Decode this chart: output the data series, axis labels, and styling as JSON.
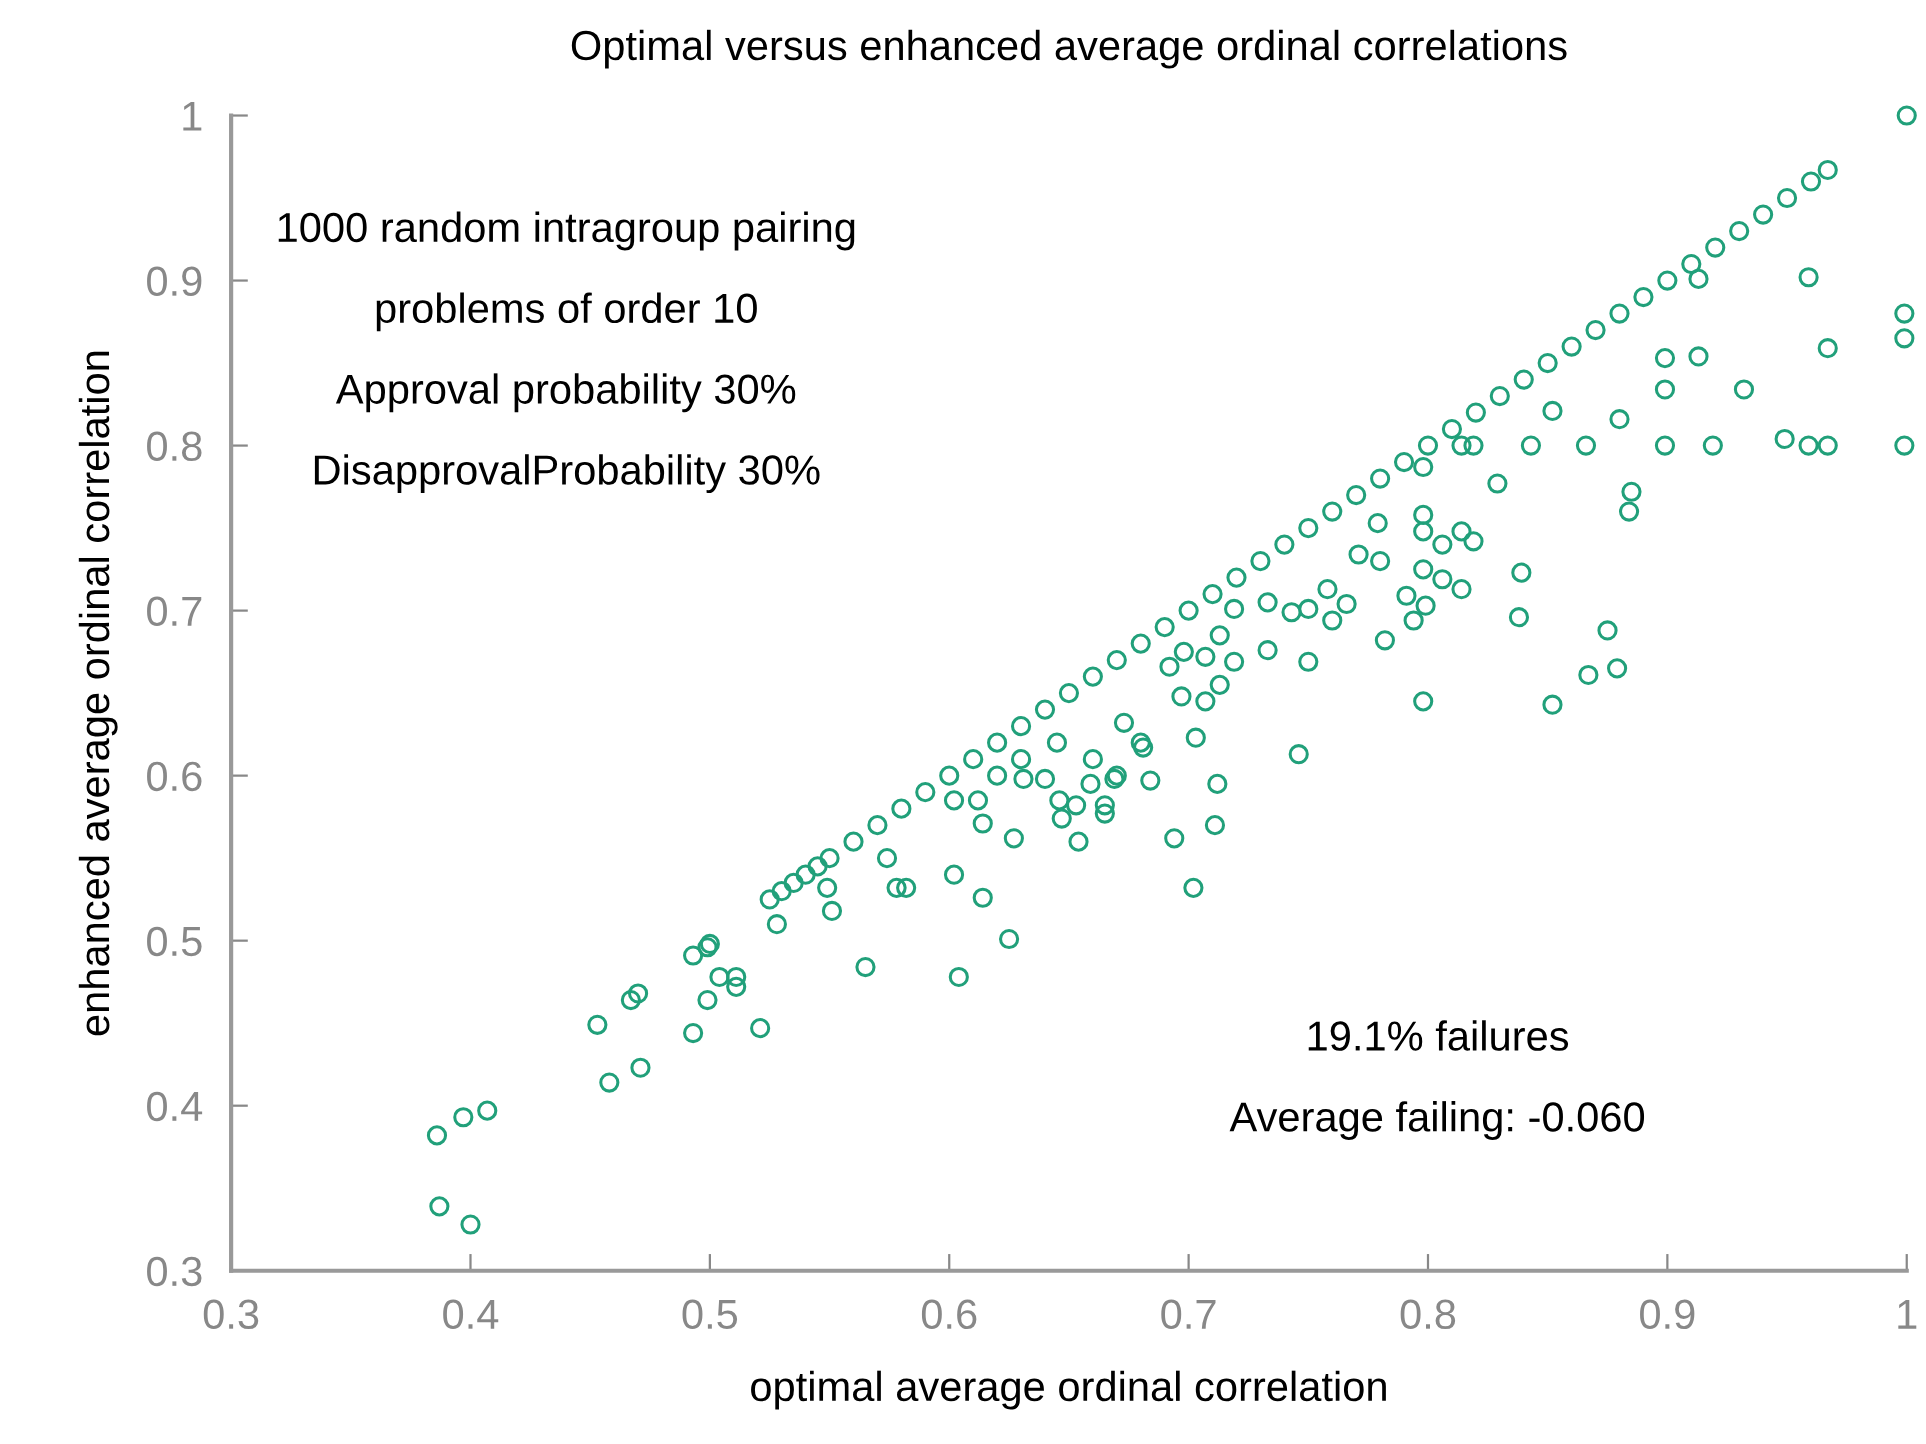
{
  "chart_data": {
    "type": "scatter",
    "title": "Optimal versus enhanced average ordinal correlations",
    "xlabel": "optimal average ordinal correlation",
    "ylabel": "enhanced average ordinal correlation",
    "annotations": [
      "1000 random intragroup pairing",
      "problems of order 10",
      "Approval probability 30%",
      "DisapprovalProbability 30%",
      "19.1% failures",
      "Average failing: -0.060"
    ],
    "xlim": [
      0.3,
      1
    ],
    "ylim": [
      0.3,
      1
    ],
    "xticks": [
      0.3,
      0.4,
      0.5,
      0.6,
      0.7,
      0.8,
      0.9,
      1
    ],
    "yticks": [
      0.3,
      0.4,
      0.5,
      0.6,
      0.7,
      0.8,
      0.9,
      1
    ],
    "grid": false,
    "legend": false,
    "marker": "circle",
    "series": [
      {
        "color": "#21a07a",
        "x": [
          0.525,
          0.53,
          0.535,
          0.54,
          0.545,
          0.55,
          0.56,
          0.57,
          0.58,
          0.59,
          0.6,
          0.61,
          0.62,
          0.63,
          0.64,
          0.65,
          0.66,
          0.67,
          0.68,
          0.69,
          0.7,
          0.71,
          0.72,
          0.73,
          0.74,
          0.75,
          0.76,
          0.77,
          0.78,
          0.79,
          0.8,
          0.81,
          0.82,
          0.83,
          0.84,
          0.85,
          0.86,
          0.87,
          0.88,
          0.89,
          0.9,
          0.91,
          0.92,
          0.93,
          0.94,
          0.95,
          0.96,
          0.967,
          1.0
        ],
        "values": [
          0.525,
          0.53,
          0.535,
          0.54,
          0.545,
          0.55,
          0.56,
          0.57,
          0.58,
          0.59,
          0.6,
          0.61,
          0.62,
          0.63,
          0.64,
          0.65,
          0.66,
          0.67,
          0.68,
          0.69,
          0.7,
          0.71,
          0.72,
          0.73,
          0.74,
          0.75,
          0.76,
          0.77,
          0.78,
          0.79,
          0.8,
          0.81,
          0.82,
          0.83,
          0.84,
          0.85,
          0.86,
          0.87,
          0.88,
          0.89,
          0.9,
          0.91,
          0.92,
          0.93,
          0.94,
          0.95,
          0.96,
          0.967,
          1.0
        ]
      },
      {
        "color": "#21a07a",
        "x": [
          0.386,
          0.397,
          0.407,
          0.387,
          0.4,
          0.453,
          0.458,
          0.471,
          0.467,
          0.47,
          0.493,
          0.499,
          0.5,
          0.493,
          0.504,
          0.511,
          0.511,
          0.499,
          0.521,
          0.528,
          0.549,
          0.551,
          0.565,
          0.574,
          0.578,
          0.582,
          0.602,
          0.604,
          0.614,
          0.625,
          0.602,
          0.612,
          0.614,
          0.627,
          0.631,
          0.64,
          0.646,
          0.647,
          0.654,
          0.653,
          0.665,
          0.665,
          0.669,
          0.659,
          0.684,
          0.694,
          0.702,
          0.711,
          0.712,
          0.66,
          0.645,
          0.63,
          0.62,
          0.68,
          0.67
        ],
        "values": [
          0.382,
          0.393,
          0.397,
          0.339,
          0.328,
          0.449,
          0.414,
          0.423,
          0.464,
          0.468,
          0.491,
          0.496,
          0.498,
          0.444,
          0.478,
          0.478,
          0.472,
          0.464,
          0.447,
          0.51,
          0.532,
          0.518,
          0.484,
          0.55,
          0.532,
          0.532,
          0.54,
          0.478,
          0.526,
          0.501,
          0.585,
          0.585,
          0.571,
          0.562,
          0.598,
          0.598,
          0.585,
          0.574,
          0.56,
          0.582,
          0.582,
          0.577,
          0.598,
          0.595,
          0.597,
          0.562,
          0.532,
          0.57,
          0.595,
          0.61,
          0.62,
          0.61,
          0.6,
          0.62,
          0.6
        ]
      },
      {
        "color": "#21a07a",
        "x": [
          0.913,
          0.959,
          0.999,
          0.999,
          0.967,
          0.899,
          0.913,
          0.899,
          0.932,
          0.852,
          0.88,
          0.814,
          0.819,
          0.843,
          0.866,
          0.899,
          0.919,
          0.949,
          0.959,
          0.967,
          0.999,
          0.798,
          0.829,
          0.885,
          0.884,
          0.779,
          0.798,
          0.798,
          0.814,
          0.819,
          0.806,
          0.839,
          0.838,
          0.875,
          0.867,
          0.879,
          0.798,
          0.852,
          0.78,
          0.771,
          0.798,
          0.806,
          0.814,
          0.791,
          0.799,
          0.794,
          0.782,
          0.758,
          0.766,
          0.76,
          0.75,
          0.743,
          0.75,
          0.733,
          0.733,
          0.719,
          0.713,
          0.719,
          0.698,
          0.707,
          0.692,
          0.713,
          0.707,
          0.697,
          0.673,
          0.703,
          0.681,
          0.746
        ],
        "values": [
          0.901,
          0.902,
          0.88,
          0.865,
          0.859,
          0.853,
          0.854,
          0.834,
          0.834,
          0.821,
          0.816,
          0.8,
          0.8,
          0.8,
          0.8,
          0.8,
          0.8,
          0.804,
          0.8,
          0.8,
          0.8,
          0.787,
          0.777,
          0.772,
          0.76,
          0.753,
          0.758,
          0.748,
          0.748,
          0.742,
          0.74,
          0.723,
          0.696,
          0.688,
          0.661,
          0.665,
          0.645,
          0.643,
          0.73,
          0.734,
          0.725,
          0.719,
          0.713,
          0.709,
          0.703,
          0.694,
          0.682,
          0.713,
          0.704,
          0.694,
          0.701,
          0.699,
          0.669,
          0.705,
          0.676,
          0.701,
          0.685,
          0.669,
          0.675,
          0.672,
          0.666,
          0.655,
          0.645,
          0.648,
          0.632,
          0.623,
          0.617,
          0.613
        ]
      }
    ]
  }
}
